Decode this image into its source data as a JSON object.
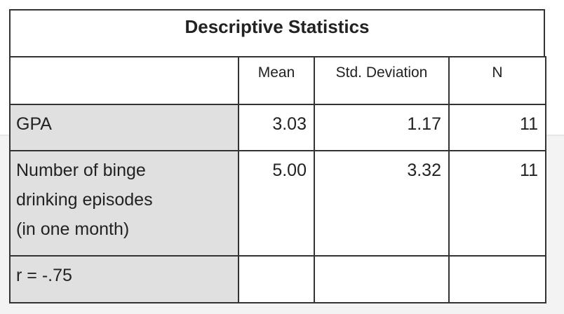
{
  "header": {
    "title": "Descriptive Statistics"
  },
  "table": {
    "columns": [
      "Mean",
      "Std. Deviation",
      "N"
    ],
    "rows": [
      {
        "label_lines": [
          "GPA"
        ],
        "cells": [
          "3.03",
          "1.17",
          "11"
        ]
      },
      {
        "label_lines": [
          "Number of binge",
          "drinking episodes",
          "(in one month)"
        ],
        "cells": [
          "5.00",
          "3.32",
          "11"
        ]
      },
      {
        "label_lines": [
          "r = -.75"
        ],
        "cells": []
      }
    ]
  }
}
